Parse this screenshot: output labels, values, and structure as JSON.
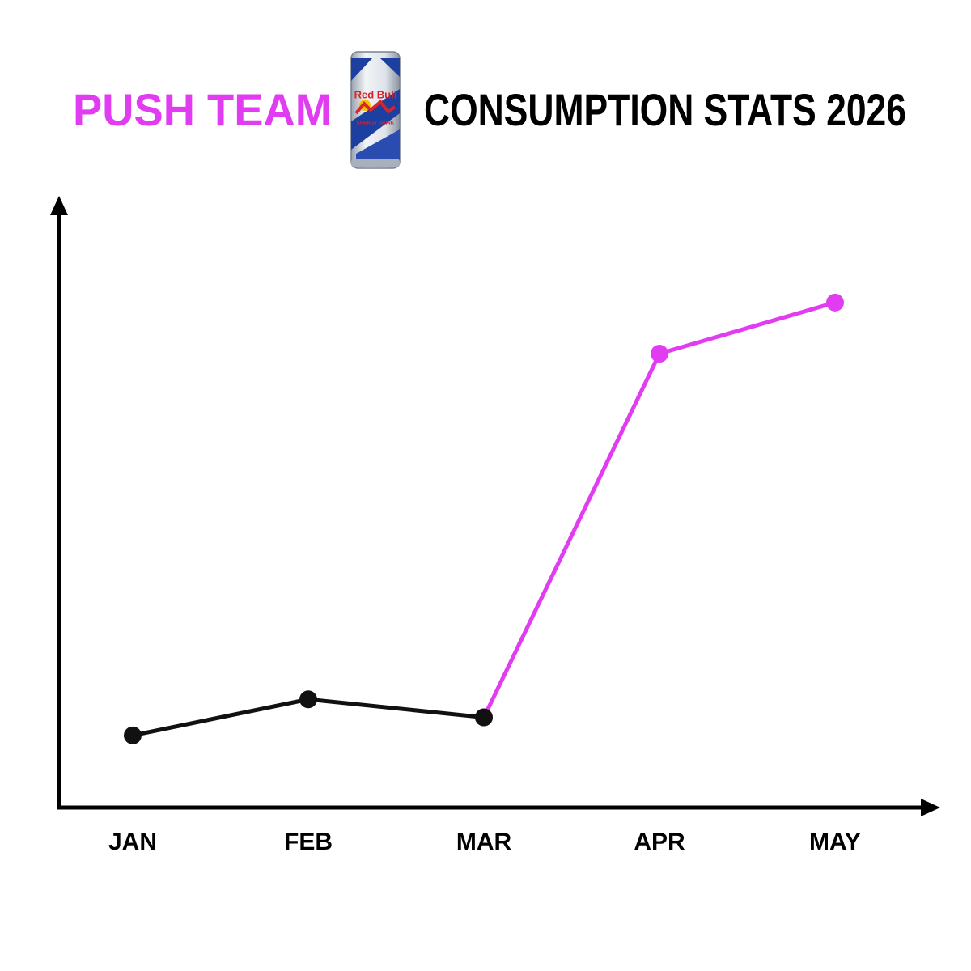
{
  "chart_data": {
    "type": "line",
    "title_parts": [
      {
        "text": "PUSH TEAM",
        "color": "#e23cf2"
      },
      {
        "text": "CONSUMPTION STATS 2026",
        "color": "#000000"
      }
    ],
    "badge": "Red Bull",
    "badge_sub": "ENERGY DRINK",
    "categories": [
      "JAN",
      "FEB",
      "MAR",
      "APR",
      "MAY"
    ],
    "series": [
      {
        "color": "#111111",
        "values": [
          12,
          18,
          15,
          null,
          null
        ]
      },
      {
        "color": "#e23cf2",
        "values": [
          null,
          null,
          15,
          75.5,
          84
        ]
      }
    ],
    "ylim": [
      0,
      100
    ]
  }
}
